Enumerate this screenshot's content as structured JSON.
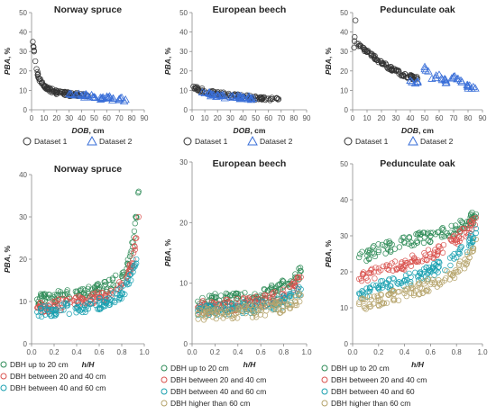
{
  "figure": {
    "colors": {
      "dataset1": "#333333",
      "dataset2": "#3a6fd8",
      "up20": "#2e8b57",
      "b20_40": "#d9534f",
      "b40_60": "#1aa0b0",
      "gt60": "#b5a36a"
    },
    "top_legend": [
      "Dataset 1",
      "Dataset 2"
    ],
    "bottom_legend_a": [
      "DBH up to 20 cm",
      "DBH between 20 and 40 cm",
      "DBH between 40 and 60 cm"
    ],
    "bottom_legend_b": [
      "DBH up to 20 cm",
      "DBH between 20 and 40 cm",
      "DBH between 40 and 60 cm",
      "DBH higher than 60 cm"
    ],
    "bottom_legend_c": [
      "DBH up to 20 cm",
      "DBH between 20 and 40 cm",
      "DBH between 40 and 60",
      "DBH higher than 60 cm"
    ]
  },
  "chart_data": [
    {
      "type": "scatter",
      "title": "Norway spruce",
      "xlabel_var": "DOB",
      "xlabel_unit": ", cm",
      "ylabel_var": "PBA",
      "ylabel_unit": ", %",
      "xlim": [
        0,
        90
      ],
      "ylim": [
        0,
        50
      ],
      "xticks": [
        0,
        10,
        20,
        30,
        40,
        50,
        60,
        70,
        80,
        90
      ],
      "yticks": [
        0,
        10,
        20,
        30,
        40,
        50
      ],
      "series": [
        {
          "name": "Dataset 1",
          "marker": "circle",
          "x": [
            1,
            2,
            3,
            4,
            5,
            6,
            8,
            10,
            13,
            16,
            20,
            25,
            30,
            35,
            40,
            45
          ],
          "y": [
            35,
            30,
            25,
            21,
            18,
            16,
            14,
            12,
            11,
            10,
            9,
            8.5,
            8,
            7.8,
            7.5,
            7.2
          ]
        },
        {
          "name": "Dataset 2",
          "marker": "triangle",
          "x": [
            30,
            35,
            40,
            45,
            50,
            55,
            60,
            65,
            70,
            75
          ],
          "y": [
            8,
            7.5,
            7.2,
            7,
            6.5,
            6.2,
            6,
            5.8,
            5.5,
            5.2
          ]
        }
      ]
    },
    {
      "type": "scatter",
      "title": "European beech",
      "xlabel_var": "DOB",
      "xlabel_unit": ", cm",
      "ylabel_var": "PBA",
      "ylabel_unit": ", %",
      "xlim": [
        0,
        90
      ],
      "ylim": [
        0,
        50
      ],
      "xticks": [
        0,
        10,
        20,
        30,
        40,
        50,
        60,
        70,
        80,
        90
      ],
      "yticks": [
        0,
        10,
        20,
        30,
        40,
        50
      ],
      "series": [
        {
          "name": "Dataset 1",
          "marker": "circle",
          "x": [
            1,
            3,
            5,
            8,
            10,
            15,
            20,
            25,
            30,
            40,
            50,
            60,
            68
          ],
          "y": [
            12,
            11,
            10.5,
            10,
            9.5,
            9,
            8.5,
            8,
            7.5,
            6.8,
            6,
            5.8,
            5.5
          ]
        },
        {
          "name": "Dataset 2",
          "marker": "triangle",
          "x": [
            8,
            10,
            15,
            20,
            25,
            30,
            35,
            40,
            45,
            48
          ],
          "y": [
            9,
            8.5,
            8,
            7.5,
            7,
            6.8,
            6.5,
            6.2,
            6,
            5.8
          ]
        }
      ]
    },
    {
      "type": "scatter",
      "title": "Pedunculate oak",
      "xlabel_var": "DOB",
      "xlabel_unit": ", cm",
      "ylabel_var": "PBA",
      "ylabel_unit": ", %",
      "xlim": [
        0,
        90
      ],
      "ylim": [
        0,
        50
      ],
      "xticks": [
        0,
        10,
        20,
        30,
        40,
        50,
        60,
        70,
        80,
        90
      ],
      "yticks": [
        0,
        10,
        20,
        30,
        40,
        50
      ],
      "series": [
        {
          "name": "Dataset 1",
          "marker": "circle",
          "x": [
            1,
            2,
            3,
            5,
            8,
            10,
            15,
            20,
            25,
            30,
            35,
            40,
            45
          ],
          "y": [
            32,
            46,
            34,
            33,
            31,
            30,
            27,
            24,
            22,
            20,
            18,
            17,
            16
          ]
        },
        {
          "name": "Dataset 2",
          "marker": "triangle",
          "x": [
            40,
            45,
            50,
            55,
            60,
            65,
            70,
            75,
            80,
            85
          ],
          "y": [
            15,
            14,
            22,
            16,
            18,
            14,
            17,
            15,
            12,
            11
          ]
        }
      ]
    },
    {
      "type": "scatter",
      "title": "Norway spruce",
      "xlabel_var": "h/H",
      "xlabel_unit": "",
      "ylabel_var": "PBA",
      "ylabel_unit": ", %",
      "xlim": [
        0,
        1
      ],
      "ylim": [
        0,
        40
      ],
      "xticks": [
        0.0,
        0.2,
        0.4,
        0.6,
        0.8,
        1.0
      ],
      "yticks": [
        0,
        10,
        20,
        30,
        40
      ],
      "series": [
        {
          "name": "DBH up to 20 cm",
          "marker": "circle",
          "x": [
            0.05,
            0.2,
            0.4,
            0.6,
            0.7,
            0.8,
            0.85,
            0.9,
            0.93,
            0.95
          ],
          "y": [
            10.5,
            11,
            12,
            13,
            14,
            16,
            19,
            24,
            30,
            36
          ]
        },
        {
          "name": "DBH between 20 and 40 cm",
          "marker": "circle",
          "x": [
            0.05,
            0.2,
            0.4,
            0.6,
            0.7,
            0.8,
            0.85,
            0.9,
            0.93,
            0.95
          ],
          "y": [
            8.5,
            9,
            10,
            11,
            12,
            14,
            16,
            20,
            25,
            30
          ]
        },
        {
          "name": "DBH between 40 and 60 cm",
          "marker": "circle",
          "x": [
            0.05,
            0.2,
            0.4,
            0.6,
            0.7,
            0.8,
            0.85,
            0.9,
            0.93
          ],
          "y": [
            7.5,
            8,
            8.5,
            9.5,
            10.5,
            12,
            14,
            17,
            20
          ]
        }
      ]
    },
    {
      "type": "scatter",
      "title": "European beech",
      "xlabel_var": "h/H",
      "xlabel_unit": "",
      "ylabel_var": "PBA",
      "ylabel_unit": ", %",
      "xlim": [
        0,
        1
      ],
      "ylim": [
        0,
        30
      ],
      "xticks": [
        0.0,
        0.2,
        0.4,
        0.6,
        0.8,
        1.0
      ],
      "yticks": [
        0,
        10,
        20,
        30
      ],
      "series": [
        {
          "name": "DBH up to 20 cm",
          "marker": "circle",
          "x": [
            0.05,
            0.2,
            0.4,
            0.6,
            0.8,
            0.9,
            0.95
          ],
          "y": [
            7,
            7.2,
            7.5,
            8,
            9.5,
            11,
            12
          ]
        },
        {
          "name": "DBH between 20 and 40 cm",
          "marker": "circle",
          "x": [
            0.05,
            0.2,
            0.4,
            0.6,
            0.8,
            0.9,
            0.95
          ],
          "y": [
            6,
            6.2,
            6.5,
            7,
            8,
            9.5,
            11
          ]
        },
        {
          "name": "DBH between 40 and 60 cm",
          "marker": "circle",
          "x": [
            0.05,
            0.2,
            0.4,
            0.6,
            0.8,
            0.9,
            0.95
          ],
          "y": [
            5.5,
            5.6,
            5.8,
            6.2,
            7,
            8,
            9
          ]
        },
        {
          "name": "DBH higher than 60 cm",
          "marker": "circle",
          "x": [
            0.05,
            0.2,
            0.4,
            0.6,
            0.8,
            0.9,
            0.95
          ],
          "y": [
            5,
            5,
            5.2,
            5.5,
            6.2,
            7,
            8
          ]
        }
      ]
    },
    {
      "type": "scatter",
      "title": "Pedunculate oak",
      "xlabel_var": "h/H",
      "xlabel_unit": "",
      "ylabel_var": "PBA",
      "ylabel_unit": ", %",
      "xlim": [
        0,
        1
      ],
      "ylim": [
        0,
        50
      ],
      "xticks": [
        0.0,
        0.2,
        0.4,
        0.6,
        0.8,
        1.0
      ],
      "yticks": [
        0,
        10,
        20,
        30,
        40,
        50
      ],
      "series": [
        {
          "name": "DBH up to 20 cm",
          "marker": "circle",
          "x": [
            0.05,
            0.2,
            0.4,
            0.6,
            0.8,
            0.9,
            0.95
          ],
          "y": [
            24,
            26,
            28,
            30,
            32,
            34,
            36
          ]
        },
        {
          "name": "DBH between 20 and 40 cm",
          "marker": "circle",
          "x": [
            0.05,
            0.2,
            0.4,
            0.6,
            0.8,
            0.9,
            0.95
          ],
          "y": [
            18,
            20,
            22,
            25,
            29,
            32,
            35
          ]
        },
        {
          "name": "DBH between 40 and 60",
          "marker": "circle",
          "x": [
            0.05,
            0.2,
            0.4,
            0.6,
            0.8,
            0.9,
            0.95
          ],
          "y": [
            14,
            15.5,
            17.5,
            20,
            24,
            28,
            32
          ]
        },
        {
          "name": "DBH higher than 60 cm",
          "marker": "circle",
          "x": [
            0.05,
            0.2,
            0.4,
            0.6,
            0.8,
            0.9,
            0.95
          ],
          "y": [
            11,
            12,
            14,
            16.5,
            20,
            24,
            29
          ]
        }
      ]
    }
  ]
}
